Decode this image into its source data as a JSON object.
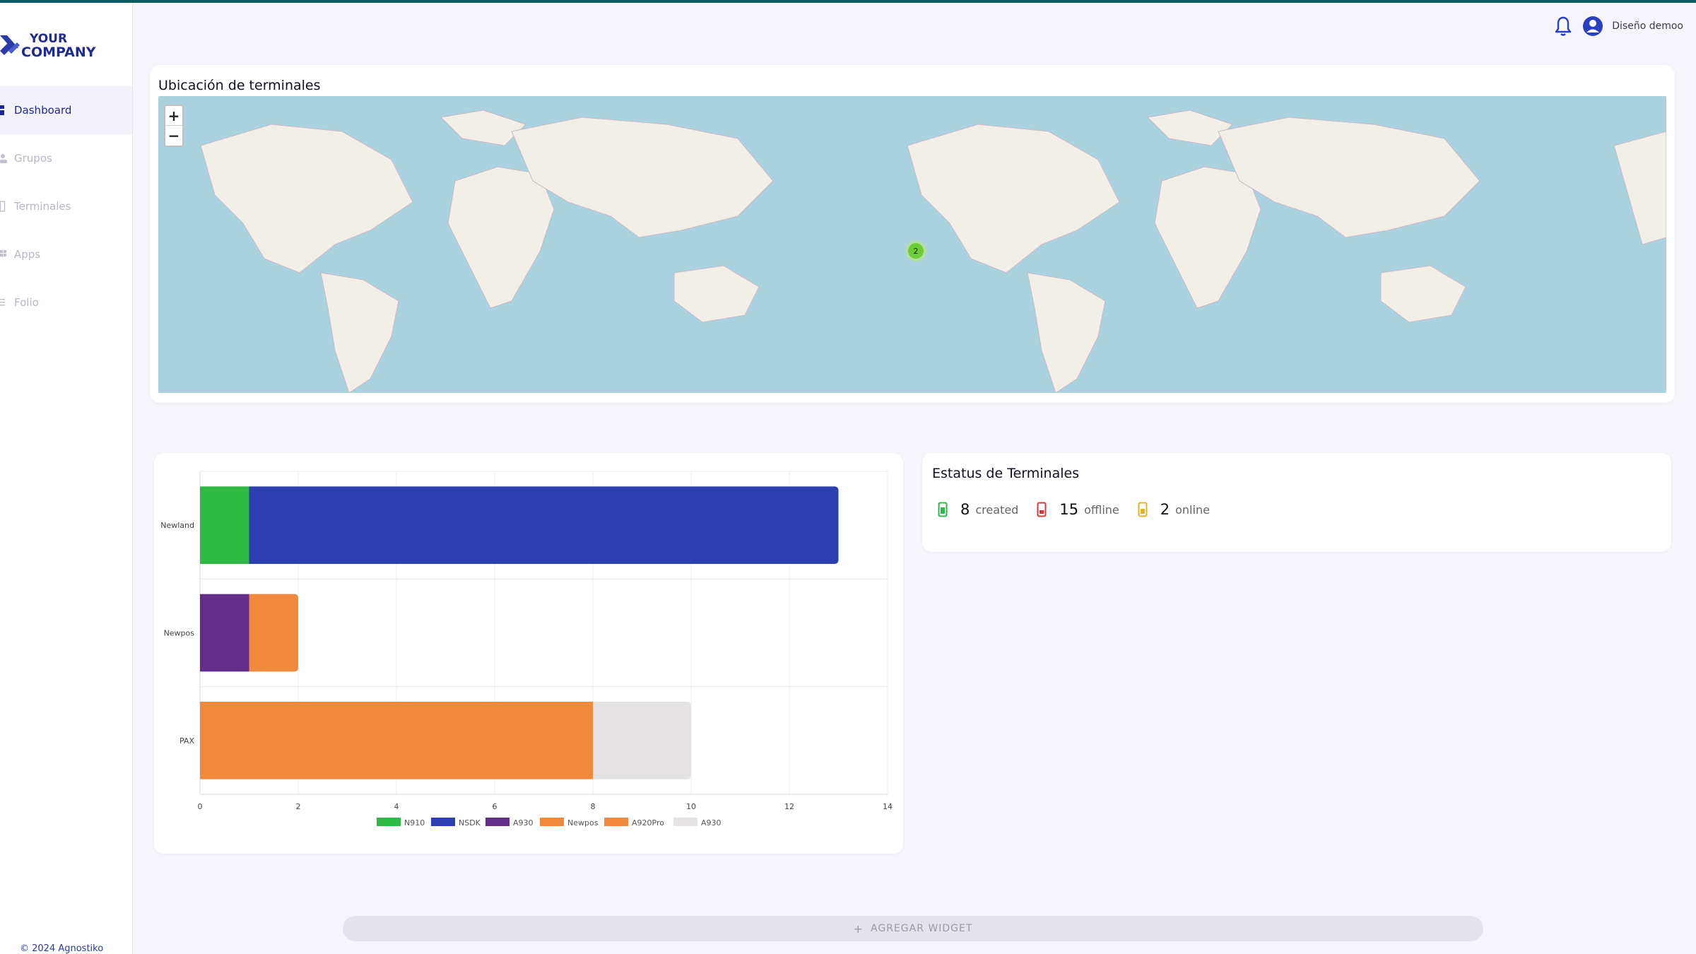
{
  "brand": {
    "line1": "YOUR",
    "line2": "COMPANY",
    "color": "#1f2c8f"
  },
  "sidebar": {
    "items": [
      {
        "label": "Dashboard",
        "icon": "dashboard-icon",
        "active": true
      },
      {
        "label": "Grupos",
        "icon": "groups-icon",
        "active": false
      },
      {
        "label": "Terminales",
        "icon": "terminal-icon",
        "active": false
      },
      {
        "label": "Apps",
        "icon": "apps-icon",
        "active": false
      },
      {
        "label": "Folio",
        "icon": "folio-icon",
        "active": false
      }
    ],
    "footer": "© 2024 Agnostiko"
  },
  "header": {
    "user_name": "Diseño demoo",
    "bell_icon": "bell-icon",
    "avatar_icon": "user-avatar-icon"
  },
  "map_card": {
    "title": "Ubicación de terminales",
    "zoom_in": "+",
    "zoom_out": "−",
    "cluster_count": "2"
  },
  "status_card": {
    "title": "Estatus de Terminales",
    "stats": [
      {
        "value": "8",
        "label": "created",
        "color": "#2fb84a"
      },
      {
        "value": "15",
        "label": "offline",
        "color": "#e0363a"
      },
      {
        "value": "2",
        "label": "online",
        "color": "#e6b325"
      }
    ]
  },
  "add_widget": {
    "label": "AGREGAR WIDGET"
  },
  "chart_data": {
    "type": "bar",
    "orientation": "horizontal",
    "stacked": true,
    "categories": [
      "Newland",
      "Newpos",
      "PAX"
    ],
    "series": [
      {
        "name": "N910",
        "color": "#2fb944",
        "values": [
          1,
          0,
          0
        ]
      },
      {
        "name": "NSDK",
        "color": "#2d3eae",
        "values": [
          12,
          0,
          0
        ]
      },
      {
        "name": "A930",
        "color": "#632d8c",
        "values": [
          0,
          1,
          0
        ]
      },
      {
        "name": "Newpos",
        "color": "#f0883e",
        "values": [
          0,
          1,
          0
        ]
      },
      {
        "name": "A920Pro",
        "color": "#f0883e",
        "values": [
          0,
          0,
          8
        ]
      },
      {
        "name": "A930",
        "color": "#e5e2e4",
        "values": [
          0,
          0,
          2
        ]
      }
    ],
    "xlim": [
      0,
      14
    ],
    "xticks": [
      0,
      2,
      4,
      6,
      8,
      10,
      12,
      14
    ],
    "grid": true,
    "legend": "bottom"
  }
}
